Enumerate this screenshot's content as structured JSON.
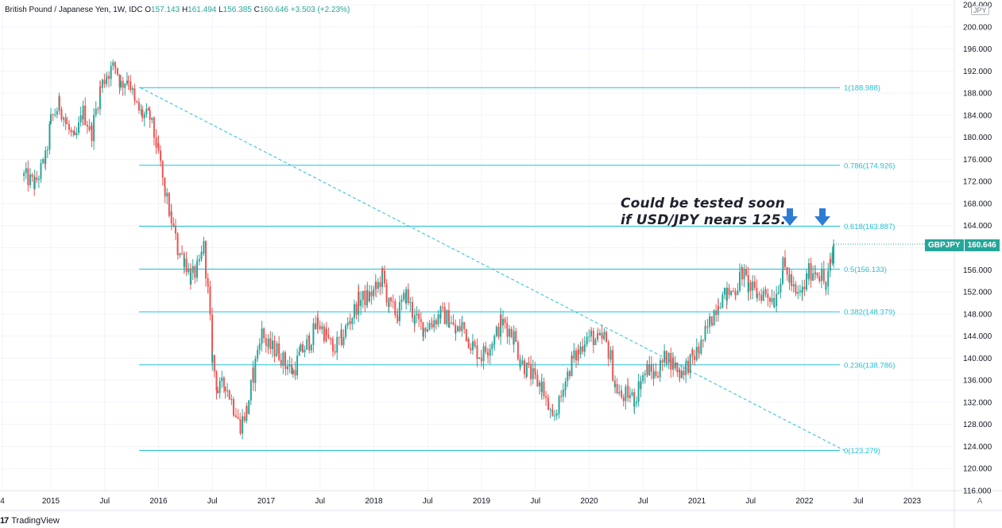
{
  "header": {
    "symbol_desc": "British Pound / Japanese Yen, 1W, IDC",
    "open_label": "O",
    "open": "157.143",
    "high_label": "H",
    "high": "161.494",
    "low_label": "L",
    "low": "156.385",
    "close_label": "C",
    "close": "160.646",
    "change": "+3.503 (+2.23%)"
  },
  "currency_button": "JPY",
  "price_badge": {
    "symbol": "GBPJPY",
    "price": "160.646"
  },
  "annotation": {
    "line1": "Could be tested soon",
    "line2": "if USD/JPY nears 125."
  },
  "footer": {
    "logo": "17",
    "brand": "TradingView"
  },
  "auto_button": "A",
  "colors": {
    "up": "#26a69a",
    "down": "#ef5350",
    "fib": "#22c1d6",
    "arrow": "#2e7bd4",
    "grid": "#f0f3fa"
  },
  "chart_data": {
    "type": "candlestick",
    "title": "British Pound / Japanese Yen, 1W, IDC",
    "ylim": [
      116.0,
      204.0
    ],
    "y_ticks": [
      "116.000",
      "120.000",
      "124.000",
      "128.000",
      "132.000",
      "136.000",
      "140.000",
      "144.000",
      "148.000",
      "152.000",
      "156.000",
      "160.000",
      "164.000",
      "168.000",
      "172.000",
      "176.000",
      "180.000",
      "184.000",
      "188.000",
      "192.000",
      "196.000",
      "200.000",
      "204.000"
    ],
    "x_ticks": [
      "4",
      "2015",
      "Jul",
      "2016",
      "Jul",
      "2017",
      "Jul",
      "2018",
      "Jul",
      "2019",
      "Jul",
      "2020",
      "Jul",
      "2021",
      "Jul",
      "2022",
      "Jul",
      "2023"
    ],
    "fib_levels": [
      {
        "label": "1(188.988)",
        "value": 188.988
      },
      {
        "label": "0.786(174.926)",
        "value": 174.926
      },
      {
        "label": "0.618(163.887)",
        "value": 163.887
      },
      {
        "label": "0.5(156.133)",
        "value": 156.133
      },
      {
        "label": "0.382(148.379)",
        "value": 148.379
      },
      {
        "label": "0.236(138.786)",
        "value": 138.786
      },
      {
        "label": "0(123.279)",
        "value": 123.279
      }
    ],
    "trendline": {
      "from": {
        "date": "2015-10",
        "value": 188.988
      },
      "to": {
        "date": "2022-05",
        "value": 123.279
      }
    },
    "last_price": 160.646,
    "path": [
      [
        2014.75,
        173.0
      ],
      [
        2014.85,
        171.5
      ],
      [
        2014.95,
        176.0
      ],
      [
        2015.0,
        183.0
      ],
      [
        2015.08,
        186.0
      ],
      [
        2015.15,
        182.0
      ],
      [
        2015.22,
        179.0
      ],
      [
        2015.3,
        184.5
      ],
      [
        2015.38,
        181.0
      ],
      [
        2015.46,
        189.0
      ],
      [
        2015.52,
        191.5
      ],
      [
        2015.6,
        193.0
      ],
      [
        2015.65,
        189.5
      ],
      [
        2015.72,
        191.0
      ],
      [
        2015.78,
        186.0
      ],
      [
        2015.85,
        184.0
      ],
      [
        2015.92,
        183.5
      ],
      [
        2016.0,
        177.0
      ],
      [
        2016.06,
        170.0
      ],
      [
        2016.12,
        165.0
      ],
      [
        2016.18,
        159.5
      ],
      [
        2016.24,
        158.0
      ],
      [
        2016.3,
        154.5
      ],
      [
        2016.36,
        156.0
      ],
      [
        2016.42,
        160.0
      ],
      [
        2016.46,
        152.0
      ],
      [
        2016.5,
        140.0
      ],
      [
        2016.55,
        134.0
      ],
      [
        2016.62,
        135.5
      ],
      [
        2016.7,
        131.0
      ],
      [
        2016.76,
        128.0
      ],
      [
        2016.82,
        130.5
      ],
      [
        2016.88,
        137.0
      ],
      [
        2016.92,
        141.0
      ],
      [
        2016.96,
        144.5
      ],
      [
        2017.02,
        142.0
      ],
      [
        2017.1,
        141.5
      ],
      [
        2017.18,
        139.0
      ],
      [
        2017.25,
        137.5
      ],
      [
        2017.32,
        141.0
      ],
      [
        2017.4,
        143.0
      ],
      [
        2017.48,
        146.5
      ],
      [
        2017.56,
        144.0
      ],
      [
        2017.62,
        141.5
      ],
      [
        2017.7,
        143.5
      ],
      [
        2017.78,
        147.0
      ],
      [
        2017.86,
        150.5
      ],
      [
        2017.94,
        151.0
      ],
      [
        2018.02,
        152.5
      ],
      [
        2018.08,
        155.0
      ],
      [
        2018.14,
        149.5
      ],
      [
        2018.22,
        148.0
      ],
      [
        2018.3,
        151.5
      ],
      [
        2018.38,
        147.0
      ],
      [
        2018.46,
        145.5
      ],
      [
        2018.54,
        146.5
      ],
      [
        2018.62,
        148.0
      ],
      [
        2018.7,
        147.0
      ],
      [
        2018.76,
        144.5
      ],
      [
        2018.82,
        146.0
      ],
      [
        2018.88,
        143.5
      ],
      [
        2018.94,
        141.5
      ],
      [
        2019.0,
        140.5
      ],
      [
        2019.06,
        142.0
      ],
      [
        2019.12,
        143.5
      ],
      [
        2019.18,
        146.5
      ],
      [
        2019.24,
        145.5
      ],
      [
        2019.3,
        144.0
      ],
      [
        2019.36,
        139.5
      ],
      [
        2019.42,
        138.0
      ],
      [
        2019.5,
        136.0
      ],
      [
        2019.56,
        135.0
      ],
      [
        2019.62,
        131.0
      ],
      [
        2019.66,
        128.5
      ],
      [
        2019.72,
        131.5
      ],
      [
        2019.78,
        136.0
      ],
      [
        2019.84,
        139.5
      ],
      [
        2019.9,
        141.0
      ],
      [
        2019.96,
        143.5
      ],
      [
        2020.02,
        144.0
      ],
      [
        2020.08,
        143.0
      ],
      [
        2020.14,
        143.5
      ],
      [
        2020.2,
        140.0
      ],
      [
        2020.24,
        135.0
      ],
      [
        2020.3,
        133.0
      ],
      [
        2020.36,
        133.5
      ],
      [
        2020.42,
        132.5
      ],
      [
        2020.48,
        136.0
      ],
      [
        2020.54,
        138.0
      ],
      [
        2020.6,
        137.0
      ],
      [
        2020.66,
        138.5
      ],
      [
        2020.72,
        140.5
      ],
      [
        2020.78,
        139.0
      ],
      [
        2020.84,
        137.5
      ],
      [
        2020.9,
        138.5
      ],
      [
        2020.96,
        140.0
      ],
      [
        2021.02,
        141.5
      ],
      [
        2021.08,
        144.5
      ],
      [
        2021.14,
        147.5
      ],
      [
        2021.2,
        150.5
      ],
      [
        2021.28,
        151.5
      ],
      [
        2021.36,
        152.5
      ],
      [
        2021.42,
        155.5
      ],
      [
        2021.48,
        153.0
      ],
      [
        2021.56,
        151.5
      ],
      [
        2021.64,
        152.0
      ],
      [
        2021.72,
        150.5
      ],
      [
        2021.8,
        156.5
      ],
      [
        2021.86,
        154.5
      ],
      [
        2021.92,
        151.0
      ],
      [
        2021.98,
        152.0
      ],
      [
        2022.04,
        155.5
      ],
      [
        2022.1,
        156.0
      ],
      [
        2022.16,
        155.0
      ],
      [
        2022.2,
        152.5
      ],
      [
        2022.24,
        157.1
      ],
      [
        2022.27,
        160.646
      ]
    ]
  }
}
